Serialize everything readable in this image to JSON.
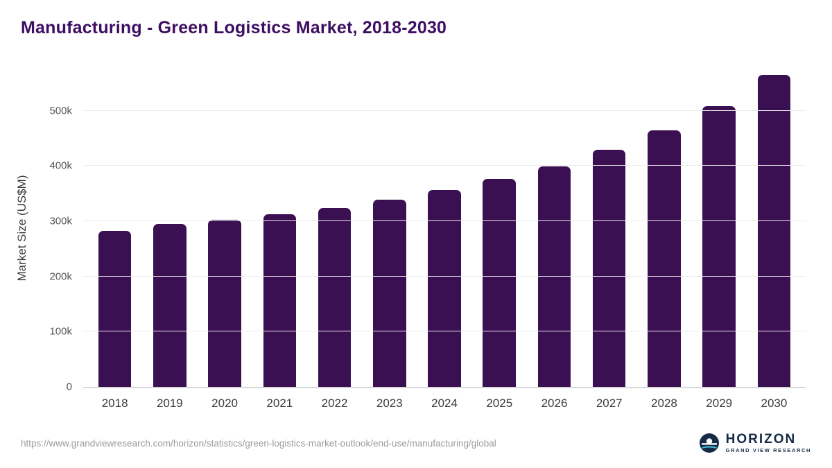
{
  "title": "Manufacturing - Green Logistics Market, 2018-2030",
  "chart_data": {
    "type": "bar",
    "title": "Manufacturing - Green Logistics Market, 2018-2030",
    "categories": [
      "2018",
      "2019",
      "2020",
      "2021",
      "2022",
      "2023",
      "2024",
      "2025",
      "2026",
      "2027",
      "2028",
      "2029",
      "2030"
    ],
    "values": [
      283000,
      295000,
      302000,
      313000,
      324000,
      339000,
      356000,
      377000,
      399000,
      429000,
      465000,
      509000,
      565000
    ],
    "xlabel": "",
    "ylabel": "Market Size (US$M)",
    "ylim": [
      0,
      575000
    ],
    "yticks": [
      {
        "value": 0,
        "label": "0"
      },
      {
        "value": 100000,
        "label": "100k"
      },
      {
        "value": 200000,
        "label": "200k"
      },
      {
        "value": 300000,
        "label": "300k"
      },
      {
        "value": 400000,
        "label": "400k"
      },
      {
        "value": 500000,
        "label": "500k"
      }
    ],
    "bar_color": "#3b1053",
    "grid": "horizontal",
    "legend": "none"
  },
  "footer": {
    "source_url": "https://www.grandviewresearch.com/horizon/statistics/green-logistics-market-outlook/end-use/manufacturing/global",
    "logo": {
      "name": "HORIZON",
      "subtitle": "GRAND VIEW RESEARCH"
    }
  },
  "colors": {
    "title_text": "#3d0e61",
    "bar": "#3b1053",
    "axis_text": "#3a3a3a",
    "tick_text": "#555555",
    "gridline": "#ececec",
    "baseline": "#d8d8d8",
    "url_text": "#9b9b9b",
    "logo_navy": "#152b46"
  }
}
